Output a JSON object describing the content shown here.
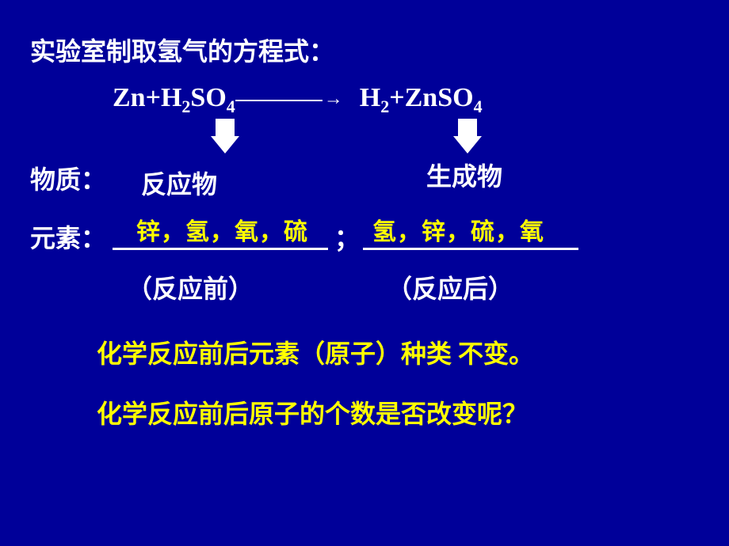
{
  "title": "实验室制取氢气的方程式：",
  "equation": {
    "left1": "Zn+H",
    "sub1": "2",
    "left2": "SO",
    "sub2": "4",
    "arrow_suffix": "→",
    "right1": "H",
    "sub3": "2",
    "right2": "+ZnSO",
    "sub4": "4"
  },
  "labels": {
    "wuzhi": "物质：",
    "reactant": "反应物",
    "product": "生成物",
    "yuansu": "元素：",
    "semicolon": "；",
    "before": "（反应前）",
    "after": "（反应后）"
  },
  "elements": {
    "left": "锌，氢，氧，硫",
    "right": "氢，锌，硫，氧"
  },
  "conclusions": {
    "line1": "化学反应前后元素（原子）种类 不变。",
    "line2": "化学反应前后原子的个数是否改变呢？"
  },
  "style": {
    "bg": "#000099",
    "text": "#ffffff",
    "highlight": "#ffff00"
  }
}
